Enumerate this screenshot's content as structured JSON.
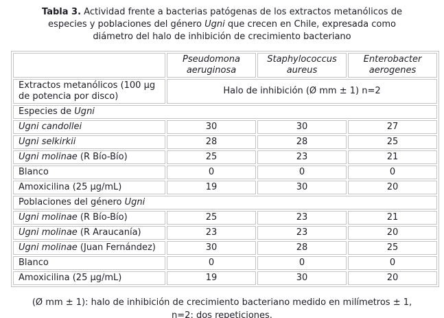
{
  "title": {
    "lines": [
      [
        {
          "text": "Tabla 3.",
          "bold": true
        },
        {
          "text": " Actividad frente a bacterias patógenas de los extractos metanólicos de"
        }
      ],
      [
        {
          "text": "especies y poblaciones del género "
        },
        {
          "text": "Ugni",
          "italic": true
        },
        {
          "text": " que crecen en Chile, expresada como"
        }
      ],
      [
        {
          "text": "diámetro del halo de inhibición de crecimiento bacteriano"
        }
      ]
    ]
  },
  "table": {
    "columns": [
      "Pseudomona aeruginosa",
      "Staphylococcus aureus",
      "Enterobacter aerogenes"
    ],
    "subheader": {
      "row_label": "Extractos metanólicos (100 µg de potencia por disco)",
      "span_label": "Halo de inhibición (Ø mm ± 1) n=2"
    },
    "rows": [
      {
        "type": "section",
        "parts": [
          {
            "text": "Especies de "
          },
          {
            "text": "Ugni",
            "italic": true
          }
        ]
      },
      {
        "type": "data",
        "parts": [
          {
            "text": "Ugni candollei",
            "italic": true
          }
        ],
        "values": [
          "30",
          "30",
          "27"
        ]
      },
      {
        "type": "data",
        "parts": [
          {
            "text": "Ugni selkirkii",
            "italic": true
          }
        ],
        "values": [
          "28",
          "28",
          "25"
        ]
      },
      {
        "type": "data",
        "parts": [
          {
            "text": "Ugni molinae",
            "italic": true
          },
          {
            "text": " (R Bío-Bío)"
          }
        ],
        "values": [
          "25",
          "23",
          "21"
        ]
      },
      {
        "type": "data",
        "parts": [
          {
            "text": "Blanco"
          }
        ],
        "values": [
          "0",
          "0",
          "0"
        ]
      },
      {
        "type": "data",
        "parts": [
          {
            "text": "Amoxicilina (25 µg/mL)"
          }
        ],
        "values": [
          "19",
          "30",
          "20"
        ]
      },
      {
        "type": "section",
        "parts": [
          {
            "text": "Poblaciones del género "
          },
          {
            "text": "Ugni",
            "italic": true
          }
        ]
      },
      {
        "type": "data",
        "parts": [
          {
            "text": "Ugni molinae",
            "italic": true
          },
          {
            "text": " (R Bío-Bío)"
          }
        ],
        "values": [
          "25",
          "23",
          "21"
        ]
      },
      {
        "type": "data",
        "parts": [
          {
            "text": "Ugni molinae",
            "italic": true
          },
          {
            "text": " (R Araucanía)"
          }
        ],
        "values": [
          "23",
          "23",
          "20"
        ]
      },
      {
        "type": "data",
        "parts": [
          {
            "text": "Ugni molinae",
            "italic": true
          },
          {
            "text": " (Juan Fernández)"
          }
        ],
        "values": [
          "30",
          "28",
          "25"
        ]
      },
      {
        "type": "data",
        "parts": [
          {
            "text": "Blanco"
          }
        ],
        "values": [
          "0",
          "0",
          "0"
        ]
      },
      {
        "type": "data",
        "parts": [
          {
            "text": "Amoxicilina (25 µg/mL)"
          }
        ],
        "values": [
          "19",
          "30",
          "20"
        ]
      }
    ]
  },
  "footnote": {
    "lines": [
      "(Ø mm ± 1): halo de inhibición de crecimiento bacteriano medido en milímetros ± 1,",
      "n=2: dos repeticiones."
    ]
  },
  "colors": {
    "text": "#1c1c24",
    "border": "#c3c3c3",
    "background": "#ffffff"
  }
}
